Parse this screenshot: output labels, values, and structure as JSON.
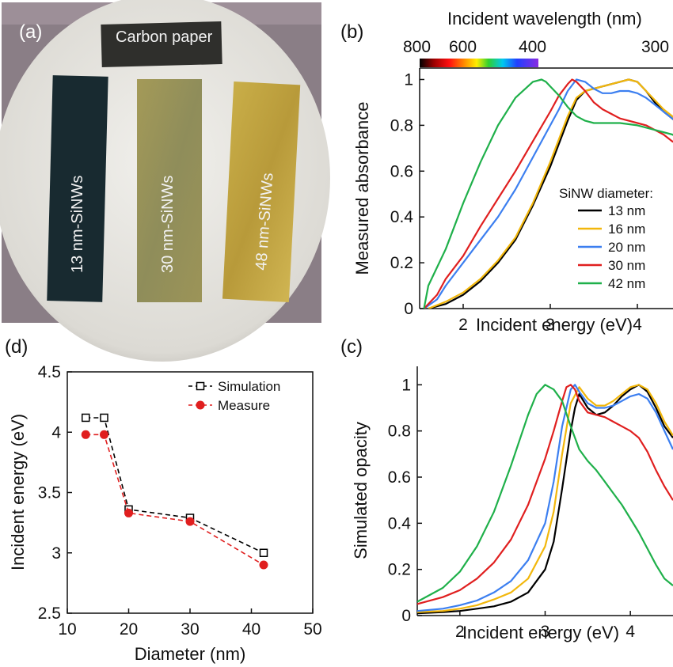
{
  "photo_panel": {
    "label": "(a)",
    "samples": [
      "Carbon paper",
      "13 nm-SiNWs",
      "30 nm-SiNWs",
      "48 nm-SiNWs"
    ]
  },
  "chart_data": [
    {
      "panel": "(b)",
      "type": "line",
      "xlabel": "Incident energy (eV)",
      "ylabel": "Measured absorbance",
      "top_axis_label": "Incident wavelength (nm)",
      "top_axis_ticks": [
        "800",
        "600",
        "400",
        "300"
      ],
      "xlim": [
        1.5,
        4.5
      ],
      "ylim": [
        0,
        1.05
      ],
      "xticks": [
        "2",
        "3",
        "4"
      ],
      "yticks": [
        "0",
        "0.2",
        "0.4",
        "0.6",
        "0.8",
        "1"
      ],
      "legend_title": "SiNW diameter:",
      "series": [
        {
          "name": "13 nm",
          "color": "#000000",
          "x": [
            1.6,
            1.8,
            2.0,
            2.2,
            2.4,
            2.6,
            2.8,
            3.0,
            3.2,
            3.3,
            3.4,
            3.5,
            3.6,
            3.7,
            3.8,
            3.9,
            4.0,
            4.1,
            4.2,
            4.3,
            4.4,
            4.5
          ],
          "y": [
            0.0,
            0.02,
            0.06,
            0.12,
            0.2,
            0.3,
            0.45,
            0.62,
            0.82,
            0.91,
            0.95,
            0.96,
            0.97,
            0.98,
            0.99,
            1.0,
            0.99,
            0.95,
            0.9,
            0.86,
            0.83,
            0.8
          ]
        },
        {
          "name": "16 nm",
          "color": "#f2b70c",
          "x": [
            1.6,
            1.8,
            2.0,
            2.2,
            2.4,
            2.6,
            2.8,
            3.0,
            3.2,
            3.3,
            3.4,
            3.5,
            3.6,
            3.7,
            3.8,
            3.9,
            4.0,
            4.1,
            4.2,
            4.3,
            4.4,
            4.5
          ],
          "y": [
            0.0,
            0.03,
            0.07,
            0.13,
            0.21,
            0.31,
            0.46,
            0.64,
            0.84,
            0.92,
            0.95,
            0.96,
            0.97,
            0.98,
            0.99,
            1.0,
            0.99,
            0.95,
            0.91,
            0.87,
            0.84,
            0.81
          ]
        },
        {
          "name": "20 nm",
          "color": "#3c7ff0",
          "x": [
            1.55,
            1.7,
            1.8,
            2.0,
            2.2,
            2.4,
            2.6,
            2.8,
            3.0,
            3.1,
            3.2,
            3.3,
            3.4,
            3.5,
            3.6,
            3.7,
            3.8,
            3.9,
            4.0,
            4.1,
            4.2,
            4.3,
            4.4,
            4.5
          ],
          "y": [
            0.0,
            0.04,
            0.1,
            0.2,
            0.3,
            0.4,
            0.52,
            0.66,
            0.8,
            0.87,
            0.95,
            1.0,
            0.99,
            0.96,
            0.94,
            0.94,
            0.95,
            0.95,
            0.94,
            0.92,
            0.89,
            0.86,
            0.83,
            0.81
          ]
        },
        {
          "name": "30 nm",
          "color": "#e01f1f",
          "x": [
            1.55,
            1.7,
            1.8,
            2.0,
            2.2,
            2.4,
            2.6,
            2.8,
            3.0,
            3.1,
            3.2,
            3.25,
            3.3,
            3.4,
            3.5,
            3.6,
            3.7,
            3.8,
            3.9,
            4.0,
            4.1,
            4.2,
            4.3,
            4.4,
            4.5
          ],
          "y": [
            0.0,
            0.06,
            0.13,
            0.23,
            0.36,
            0.48,
            0.6,
            0.73,
            0.86,
            0.93,
            0.98,
            1.0,
            0.99,
            0.95,
            0.9,
            0.87,
            0.85,
            0.83,
            0.82,
            0.81,
            0.8,
            0.78,
            0.76,
            0.73,
            0.71
          ]
        },
        {
          "name": "42 nm",
          "color": "#1fb04a",
          "x": [
            1.55,
            1.6,
            1.7,
            1.8,
            1.9,
            2.0,
            2.2,
            2.4,
            2.6,
            2.8,
            2.9,
            2.95,
            3.0,
            3.1,
            3.2,
            3.3,
            3.4,
            3.5,
            3.6,
            3.8,
            4.0,
            4.2,
            4.4,
            4.5
          ],
          "y": [
            0.0,
            0.1,
            0.18,
            0.26,
            0.36,
            0.46,
            0.64,
            0.8,
            0.92,
            0.99,
            1.0,
            0.99,
            0.97,
            0.93,
            0.88,
            0.84,
            0.82,
            0.81,
            0.81,
            0.81,
            0.8,
            0.78,
            0.76,
            0.74
          ]
        }
      ]
    },
    {
      "panel": "(c)",
      "type": "line",
      "xlabel": "Incident energy (eV)",
      "ylabel": "Simulated opacity",
      "xlim": [
        1.5,
        4.5
      ],
      "ylim": [
        0,
        1.08
      ],
      "xticks": [
        "2",
        "3",
        "4"
      ],
      "yticks": [
        "0",
        "0.2",
        "0.4",
        "0.6",
        "0.8",
        "1"
      ],
      "series": [
        {
          "name": "13 nm",
          "color": "#000000",
          "x": [
            1.5,
            1.8,
            2.0,
            2.2,
            2.4,
            2.6,
            2.8,
            3.0,
            3.1,
            3.2,
            3.3,
            3.35,
            3.4,
            3.5,
            3.6,
            3.7,
            3.8,
            3.9,
            4.0,
            4.1,
            4.2,
            4.3,
            4.4,
            4.5
          ],
          "y": [
            0.01,
            0.015,
            0.02,
            0.03,
            0.04,
            0.06,
            0.1,
            0.2,
            0.32,
            0.55,
            0.8,
            0.9,
            0.96,
            0.9,
            0.87,
            0.88,
            0.91,
            0.95,
            0.98,
            1.0,
            0.97,
            0.9,
            0.82,
            0.77
          ]
        },
        {
          "name": "16 nm",
          "color": "#f2b70c",
          "x": [
            1.5,
            1.8,
            2.0,
            2.2,
            2.4,
            2.6,
            2.8,
            3.0,
            3.1,
            3.2,
            3.3,
            3.4,
            3.5,
            3.6,
            3.7,
            3.8,
            3.9,
            4.0,
            4.1,
            4.2,
            4.3,
            4.4,
            4.5
          ],
          "y": [
            0.015,
            0.02,
            0.03,
            0.045,
            0.07,
            0.1,
            0.16,
            0.3,
            0.45,
            0.7,
            0.92,
            0.99,
            0.94,
            0.91,
            0.91,
            0.93,
            0.96,
            0.99,
            1.0,
            0.98,
            0.92,
            0.84,
            0.78
          ]
        },
        {
          "name": "20 nm",
          "color": "#3c7ff0",
          "x": [
            1.5,
            1.8,
            2.0,
            2.2,
            2.4,
            2.6,
            2.8,
            3.0,
            3.1,
            3.2,
            3.3,
            3.35,
            3.4,
            3.5,
            3.6,
            3.7,
            3.8,
            3.9,
            4.0,
            4.1,
            4.2,
            4.3,
            4.4,
            4.5
          ],
          "y": [
            0.02,
            0.03,
            0.045,
            0.065,
            0.1,
            0.15,
            0.24,
            0.4,
            0.58,
            0.82,
            0.98,
            1.0,
            0.97,
            0.92,
            0.9,
            0.9,
            0.91,
            0.93,
            0.95,
            0.96,
            0.94,
            0.88,
            0.8,
            0.72
          ]
        },
        {
          "name": "30 nm",
          "color": "#e01f1f",
          "x": [
            1.5,
            1.8,
            2.0,
            2.2,
            2.4,
            2.6,
            2.8,
            3.0,
            3.1,
            3.2,
            3.25,
            3.3,
            3.35,
            3.4,
            3.5,
            3.6,
            3.7,
            3.8,
            3.9,
            4.0,
            4.1,
            4.2,
            4.3,
            4.4,
            4.5
          ],
          "y": [
            0.05,
            0.08,
            0.11,
            0.16,
            0.23,
            0.33,
            0.48,
            0.68,
            0.8,
            0.93,
            0.99,
            1.0,
            0.98,
            0.93,
            0.88,
            0.87,
            0.86,
            0.84,
            0.82,
            0.8,
            0.77,
            0.71,
            0.63,
            0.56,
            0.5
          ]
        },
        {
          "name": "42 nm",
          "color": "#1fb04a",
          "x": [
            1.5,
            1.8,
            2.0,
            2.2,
            2.4,
            2.6,
            2.8,
            2.9,
            3.0,
            3.1,
            3.2,
            3.3,
            3.4,
            3.5,
            3.6,
            3.7,
            3.8,
            3.9,
            4.0,
            4.1,
            4.2,
            4.3,
            4.4,
            4.5
          ],
          "y": [
            0.06,
            0.12,
            0.19,
            0.3,
            0.45,
            0.65,
            0.87,
            0.96,
            1.0,
            0.98,
            0.93,
            0.82,
            0.72,
            0.67,
            0.63,
            0.58,
            0.53,
            0.48,
            0.42,
            0.36,
            0.29,
            0.22,
            0.16,
            0.13
          ]
        }
      ]
    },
    {
      "panel": "(d)",
      "type": "line",
      "xlabel": "Diameter (nm)",
      "ylabel": "Incident energy (eV)",
      "xlim": [
        10,
        50
      ],
      "ylim": [
        2.5,
        4.5
      ],
      "xticks": [
        "10",
        "20",
        "30",
        "40",
        "50"
      ],
      "yticks": [
        "2.5",
        "3",
        "3.5",
        "4",
        "4.5"
      ],
      "series": [
        {
          "name": "Simulation",
          "color": "#000000",
          "x": [
            13,
            16,
            20,
            30,
            42
          ],
          "y": [
            4.12,
            4.12,
            3.36,
            3.29,
            3.0
          ]
        },
        {
          "name": "Measure",
          "color": "#e01f1f",
          "x": [
            13,
            16,
            20,
            30,
            42
          ],
          "y": [
            3.98,
            3.98,
            3.33,
            3.26,
            2.9
          ]
        }
      ]
    }
  ]
}
